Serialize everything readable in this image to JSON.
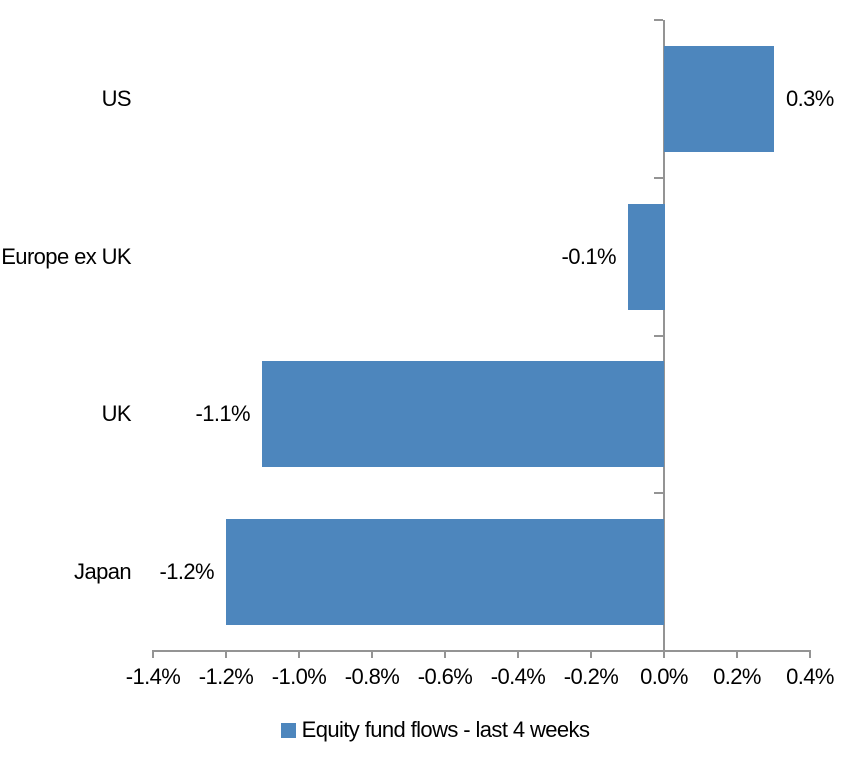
{
  "chart_data": {
    "type": "bar",
    "orientation": "horizontal",
    "categories": [
      "US",
      "Europe ex UK",
      "UK",
      "Japan"
    ],
    "series": [
      {
        "name": "Equity fund flows - last 4 weeks",
        "values": [
          0.3,
          -0.1,
          -1.1,
          -1.2
        ],
        "data_labels": [
          "0.3%",
          "-0.1%",
          "-1.1%",
          "-1.2%"
        ]
      }
    ],
    "unit": "%",
    "xlim": [
      -1.4,
      0.4
    ],
    "x_tick_step": 0.2,
    "x_tick_values": [
      -1.4,
      -1.2,
      -1.0,
      -0.8,
      -0.6,
      -0.4,
      -0.2,
      0.0,
      0.2,
      0.4
    ],
    "x_tick_labels": [
      "-1.4%",
      "-1.2%",
      "-1.0%",
      "-0.8%",
      "-0.6%",
      "-0.4%",
      "-0.2%",
      "0.0%",
      "0.2%",
      "0.4%"
    ],
    "grid": false,
    "legend_position": "bottom",
    "colors": {
      "bar": "#4D86BD",
      "axis": "#949494",
      "text": "#000000",
      "background": "#FFFFFF"
    }
  }
}
